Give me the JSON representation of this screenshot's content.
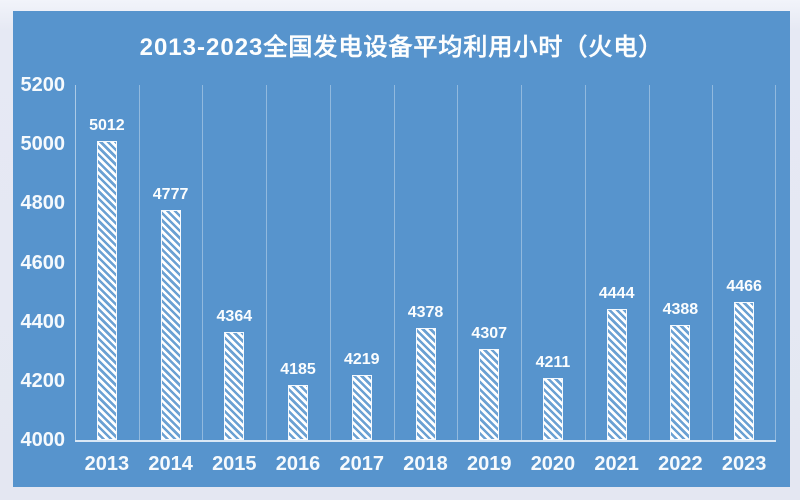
{
  "frame": {
    "outer_background": "#e4e7f2",
    "panel_background": "#5794CD",
    "text_color": "#ffffff"
  },
  "chart_data": {
    "type": "bar",
    "title": "2013-2023全国发电设备平均利用小时（火电）",
    "categories": [
      "2013",
      "2014",
      "2015",
      "2016",
      "2017",
      "2018",
      "2019",
      "2020",
      "2021",
      "2022",
      "2023"
    ],
    "values": [
      5012,
      4777,
      4364,
      4185,
      4219,
      4378,
      4307,
      4211,
      4444,
      4388,
      4466
    ],
    "xlabel": "",
    "ylabel": "",
    "ylim": [
      4000,
      5200
    ],
    "yticks": [
      5200,
      5000,
      4800,
      4600,
      4400,
      4200,
      4000
    ],
    "grid": "vertical category separators, no horizontal gridlines",
    "legend": "none",
    "bar_style": "white diagonal hatch (/) on blue background with white outline",
    "data_labels": "above each bar, white bold"
  }
}
